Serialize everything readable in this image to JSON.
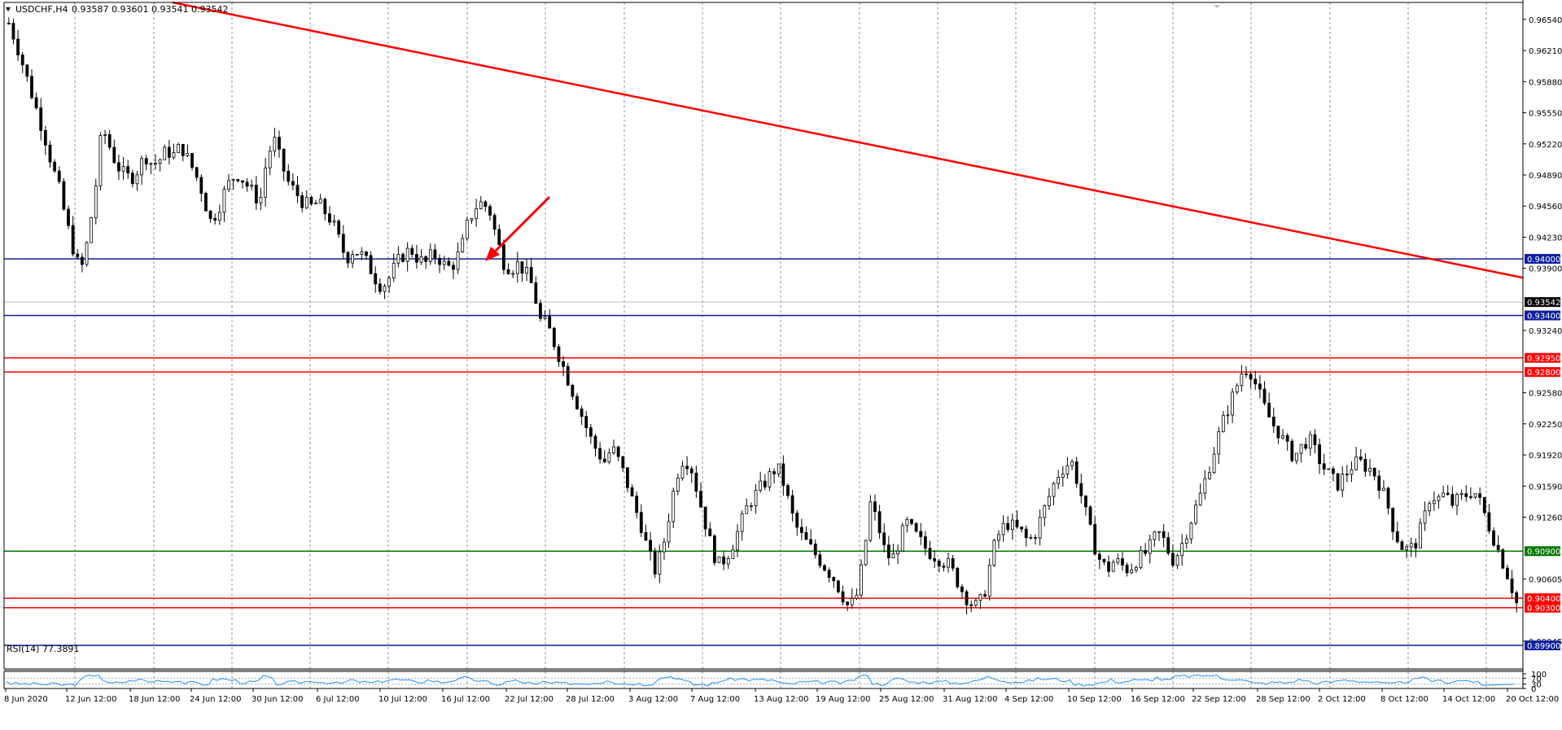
{
  "header": {
    "symbol": "USDCHF,H4",
    "ohlc": "0.93587 0.93601 0.93541 0.93542"
  },
  "rsi": {
    "label": "RSI(14) 77.3891",
    "scale": [
      "100",
      "70",
      "30",
      "0"
    ]
  },
  "colors": {
    "bull": "#000000",
    "bear": "#000000",
    "blue_level": "#0f1f9e",
    "red_level": "#ff0000",
    "green_level": "#007a00",
    "trend": "#ff0000",
    "rsi_line": "#1e90ff"
  },
  "chart_data": {
    "type": "candlestick",
    "symbol": "USDCHF",
    "timeframe": "H4",
    "ylim": [
      0.8965,
      0.9672
    ],
    "y_ticks": [
      "0.96540",
      "0.96210",
      "0.95880",
      "0.95550",
      "0.95220",
      "0.94890",
      "0.94560",
      "0.94230",
      "0.93900",
      "0.93240",
      "0.92580",
      "0.92250",
      "0.91920",
      "0.91590",
      "0.91260",
      "0.90605",
      "0.89945"
    ],
    "x_ticks": [
      "8 Jun 2020",
      "12 Jun 12:00",
      "18 Jun 12:00",
      "24 Jun 12:00",
      "30 Jun 12:00",
      "6 Jul 12:00",
      "10 Jul 12:00",
      "16 Jul 12:00",
      "22 Jul 12:00",
      "28 Jul 12:00",
      "3 Aug 12:00",
      "7 Aug 12:00",
      "13 Aug 12:00",
      "19 Aug 12:00",
      "25 Aug 12:00",
      "31 Aug 12:00",
      "4 Sep 12:00",
      "10 Sep 12:00",
      "16 Sep 12:00",
      "22 Sep 12:00",
      "28 Sep 12:00",
      "2 Oct 12:00",
      "8 Oct 12:00",
      "14 Oct 12:00",
      "20 Oct 12:00"
    ],
    "price_path": [
      0.965,
      0.963,
      0.9605,
      0.958,
      0.9555,
      0.953,
      0.95,
      0.9475,
      0.944,
      0.941,
      0.9385,
      0.942,
      0.947,
      0.954,
      0.952,
      0.95,
      0.949,
      0.9485,
      0.9495,
      0.951,
      0.95,
      0.9505,
      0.9515,
      0.951,
      0.952,
      0.9505,
      0.949,
      0.947,
      0.944,
      0.945,
      0.947,
      0.9485,
      0.949,
      0.948,
      0.947,
      0.946,
      0.951,
      0.9525,
      0.95,
      0.948,
      0.947,
      0.946,
      0.9455,
      0.946,
      0.945,
      0.944,
      0.942,
      0.94,
      0.941,
      0.9405,
      0.9395,
      0.938,
      0.937,
      0.938,
      0.9395,
      0.9405,
      0.941,
      0.94,
      0.9395,
      0.9405,
      0.94,
      0.939,
      0.9395,
      0.941,
      0.944,
      0.9455,
      0.946,
      0.945,
      0.942,
      0.9395,
      0.939,
      0.9395,
      0.9385,
      0.937,
      0.9335,
      0.933,
      0.931,
      0.929,
      0.927,
      0.925,
      0.923,
      0.921,
      0.9195,
      0.9185,
      0.92,
      0.9185,
      0.9165,
      0.914,
      0.912,
      0.909,
      0.907,
      0.909,
      0.913,
      0.917,
      0.919,
      0.918,
      0.915,
      0.912,
      0.909,
      0.9075,
      0.9085,
      0.91,
      0.912,
      0.914,
      0.915,
      0.916,
      0.917,
      0.918,
      0.916,
      0.913,
      0.911,
      0.91,
      0.909,
      0.908,
      0.907,
      0.906,
      0.9045,
      0.903,
      0.904,
      0.908,
      0.914,
      0.912,
      0.909,
      0.908,
      0.91,
      0.912,
      0.911,
      0.91,
      0.909,
      0.9085,
      0.908,
      0.9075,
      0.906,
      0.9045,
      0.9035,
      0.903,
      0.905,
      0.909,
      0.911,
      0.912,
      0.9115,
      0.911,
      0.91,
      0.911,
      0.913,
      0.915,
      0.917,
      0.918,
      0.9185,
      0.916,
      0.913,
      0.91,
      0.908,
      0.907,
      0.908,
      0.9075,
      0.907,
      0.908,
      0.9085,
      0.9095,
      0.911,
      0.91,
      0.908,
      0.909,
      0.911,
      0.913,
      0.915,
      0.9175,
      0.92,
      0.9225,
      0.9245,
      0.9265,
      0.9285,
      0.928,
      0.926,
      0.924,
      0.9225,
      0.9215,
      0.92,
      0.919,
      0.92,
      0.921,
      0.9195,
      0.918,
      0.917,
      0.916,
      0.917,
      0.918,
      0.9185,
      0.918,
      0.9175,
      0.916,
      0.914,
      0.911,
      0.9095,
      0.909,
      0.91,
      0.912,
      0.915,
      0.9145,
      0.915,
      0.914,
      0.9145,
      0.915,
      0.9155,
      0.914,
      0.912,
      0.91,
      0.908,
      0.906,
      0.9035
    ],
    "levels": [
      {
        "price": 0.94,
        "label": "0.94000",
        "color": "#0f1f9e"
      },
      {
        "price": 0.934,
        "label": "0.93400",
        "color": "#0f1f9e"
      },
      {
        "price": 0.9295,
        "label": "0.92950",
        "color": "#ff0000"
      },
      {
        "price": 0.928,
        "label": "0.92800",
        "color": "#ff0000"
      },
      {
        "price": 0.909,
        "label": "0.90900",
        "color": "#007a00"
      },
      {
        "price": 0.904,
        "label": "0.90400",
        "color": "#ff0000"
      },
      {
        "price": 0.903,
        "label": "0.90300",
        "color": "#ff0000"
      },
      {
        "price": 0.899,
        "label": "0.89900",
        "color": "#0f1f9e"
      }
    ],
    "current_price": "0.93542",
    "trendline": {
      "from": {
        "date": "10 Jun 2020",
        "price": 0.9672
      },
      "to": {
        "date": "21 Oct 2020",
        "price": 0.938
      },
      "color": "#ff0000"
    },
    "arrow": {
      "points_to": "17 Jul 2020",
      "price": 0.94,
      "color": "#ff0000"
    },
    "rsi": {
      "value": 77.3891,
      "period": 14,
      "ylim": [
        0,
        100
      ],
      "levels": [
        70,
        30
      ]
    }
  }
}
